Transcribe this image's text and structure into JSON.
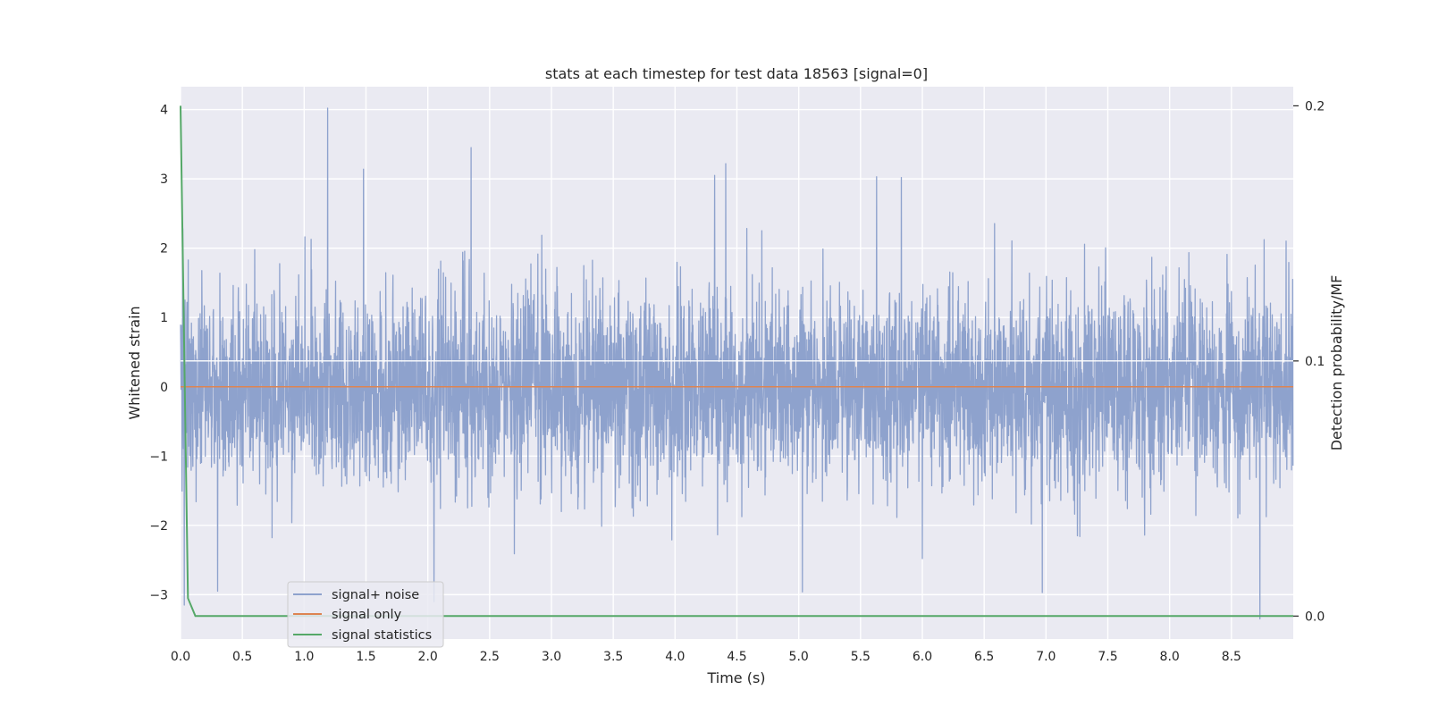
{
  "chart_data": {
    "type": "line",
    "title": "stats at each timestep for test data 18563 [signal=0]",
    "xlabel": "Time (s)",
    "ylabel": "Whitened strain",
    "y2label": "Detection probability/MF",
    "xlim": [
      0.0,
      9.0
    ],
    "ylim": [
      -3.64,
      4.33
    ],
    "y2lim": [
      -0.009,
      0.2075
    ],
    "x_ticks": [
      "0.0",
      "0.5",
      "1.0",
      "1.5",
      "2.0",
      "2.5",
      "3.0",
      "3.5",
      "4.0",
      "4.5",
      "5.0",
      "5.5",
      "6.0",
      "6.5",
      "7.0",
      "7.5",
      "8.0",
      "8.5"
    ],
    "y_ticks": [
      "−3",
      "−2",
      "−1",
      "0",
      "1",
      "2",
      "3",
      "4"
    ],
    "y2_ticks": [
      "0.0",
      "0.1",
      "0.2"
    ],
    "grid": true,
    "legend_position": "lower-left",
    "series": [
      {
        "name": "signal+ noise",
        "axis": "left",
        "color": "#8ea2cd",
        "sample_rate_hz": 500,
        "amplitude_envelope": {
          "typical_max": 1.8,
          "typical_min": -1.8
        },
        "labelled_peaks": [
          {
            "x": 1.19,
            "y": 4.02
          },
          {
            "x": 1.48,
            "y": 3.14
          },
          {
            "x": 2.35,
            "y": 3.45
          },
          {
            "x": 4.32,
            "y": 3.05
          },
          {
            "x": 4.41,
            "y": 3.22
          },
          {
            "x": 5.63,
            "y": 3.03
          },
          {
            "x": 5.83,
            "y": 3.02
          },
          {
            "x": 0.03,
            "y": -3.15
          },
          {
            "x": 0.3,
            "y": -2.95
          },
          {
            "x": 2.05,
            "y": -3.1
          },
          {
            "x": 5.03,
            "y": -2.96
          },
          {
            "x": 6.97,
            "y": -2.97
          },
          {
            "x": 8.73,
            "y": -3.35
          }
        ]
      },
      {
        "name": "signal only",
        "axis": "left",
        "color": "#dd8452",
        "x": [
          0.0,
          9.0
        ],
        "y": [
          0.0,
          0.0
        ]
      },
      {
        "name": "signal statistics",
        "axis": "right",
        "color": "#55a868",
        "x": [
          0.0,
          0.06,
          0.12,
          9.0
        ],
        "y": [
          0.2,
          0.007,
          0.0,
          0.0
        ]
      }
    ]
  }
}
